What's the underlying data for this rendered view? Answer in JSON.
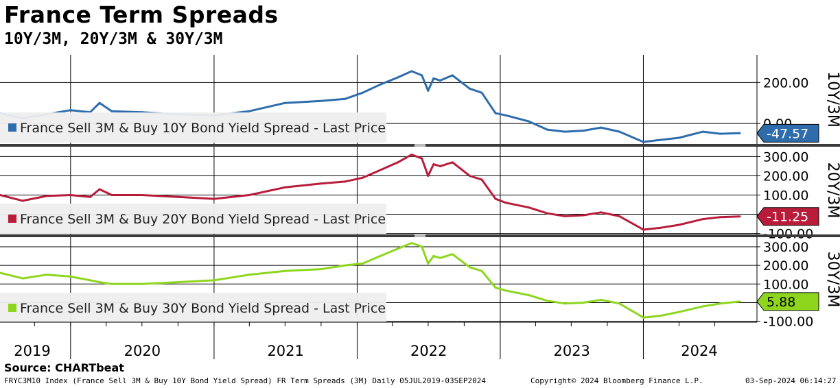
{
  "header": {
    "title": "France Term Spreads",
    "subtitle": "10Y/3M, 20Y/3M & 30Y/3M"
  },
  "footer": {
    "source": "Source: CHARTbeat",
    "description": "FRYC3M10 Index (France Sell 3M & Buy 10Y Bond Yield Spread) FR Term Spreads (3M)  Daily 05JUL2019-03SEP2024",
    "copyright": "Copyright© 2024 Bloomberg Finance L.P.",
    "timestamp": "03-Sep-2024 06:14:27"
  },
  "chart_data": {
    "type": "line",
    "x_range": [
      "2019-07-05",
      "2024-09-03"
    ],
    "x_tick_labels": [
      "2019",
      "2020",
      "2021",
      "2022",
      "2023",
      "2024"
    ],
    "panels": [
      {
        "axis_title": "10Y/3M",
        "y_tick_labels": [
          "200.00",
          "0.00"
        ],
        "y_ticks": [
          200,
          0
        ],
        "y_range": [
          -100,
          335
        ],
        "legend": "France Sell 3M & Buy 10Y Bond Yield Spread - Last Price",
        "last_value_label": "-47.57",
        "color": "#2e6cac",
        "x": [
          "2019-07-05",
          "2019-09-01",
          "2019-11-01",
          "2020-01-01",
          "2020-02-20",
          "2020-03-15",
          "2020-04-15",
          "2020-07-01",
          "2020-10-01",
          "2021-01-01",
          "2021-04-01",
          "2021-07-01",
          "2021-10-01",
          "2021-12-01",
          "2022-01-15",
          "2022-03-01",
          "2022-04-15",
          "2022-05-20",
          "2022-06-15",
          "2022-07-01",
          "2022-07-15",
          "2022-08-01",
          "2022-09-01",
          "2022-10-15",
          "2022-11-15",
          "2022-12-20",
          "2023-01-15",
          "2023-03-15",
          "2023-05-01",
          "2023-06-15",
          "2023-08-01",
          "2023-09-15",
          "2023-11-01",
          "2024-01-01",
          "2024-02-15",
          "2024-04-01",
          "2024-06-01",
          "2024-07-15",
          "2024-09-03"
        ],
        "values": [
          50,
          25,
          45,
          65,
          55,
          100,
          60,
          55,
          45,
          40,
          60,
          100,
          110,
          120,
          150,
          190,
          225,
          255,
          235,
          160,
          220,
          210,
          235,
          170,
          150,
          50,
          40,
          10,
          -30,
          -40,
          -35,
          -20,
          -40,
          -90,
          -80,
          -70,
          -40,
          -50,
          -47.57
        ]
      },
      {
        "axis_title": "20Y/3M",
        "y_tick_labels": [
          "300.00",
          "200.00",
          "100.00",
          "0.00",
          "-100.00"
        ],
        "y_ticks": [
          300,
          200,
          100,
          0,
          -100
        ],
        "y_range": [
          -105,
          355
        ],
        "legend": "France Sell 3M & Buy 20Y Bond Yield Spread - Last Price",
        "last_value_label": "-11.25",
        "color": "#b81c3a",
        "x": [
          "2019-07-05",
          "2019-09-01",
          "2019-11-01",
          "2020-01-01",
          "2020-02-20",
          "2020-03-15",
          "2020-04-15",
          "2020-07-01",
          "2020-10-01",
          "2021-01-01",
          "2021-04-01",
          "2021-07-01",
          "2021-10-01",
          "2021-12-01",
          "2022-01-15",
          "2022-03-01",
          "2022-04-15",
          "2022-05-20",
          "2022-06-15",
          "2022-07-01",
          "2022-07-15",
          "2022-08-01",
          "2022-09-01",
          "2022-10-15",
          "2022-11-15",
          "2022-12-20",
          "2023-01-15",
          "2023-03-15",
          "2023-05-01",
          "2023-06-15",
          "2023-08-01",
          "2023-09-15",
          "2023-11-01",
          "2024-01-01",
          "2024-02-15",
          "2024-04-01",
          "2024-06-01",
          "2024-07-15",
          "2024-09-03"
        ],
        "values": [
          100,
          70,
          95,
          100,
          90,
          130,
          100,
          100,
          90,
          80,
          100,
          140,
          160,
          170,
          190,
          230,
          270,
          310,
          290,
          200,
          260,
          250,
          270,
          200,
          180,
          80,
          60,
          35,
          5,
          -10,
          -5,
          10,
          -10,
          -80,
          -70,
          -55,
          -25,
          -15,
          -11.25
        ]
      },
      {
        "axis_title": "30Y/3M",
        "y_tick_labels": [
          "300.00",
          "200.00",
          "100.00",
          "0.00",
          "-100.00"
        ],
        "y_ticks": [
          300,
          200,
          100,
          0,
          -100
        ],
        "y_range": [
          -105,
          355
        ],
        "legend": "France Sell 3M & Buy 30Y Bond Yield Spread - Last Price",
        "last_value_label": "5.88",
        "color": "#8ed61e",
        "x": [
          "2019-07-05",
          "2019-09-01",
          "2019-11-01",
          "2020-01-01",
          "2020-02-20",
          "2020-03-15",
          "2020-04-15",
          "2020-07-01",
          "2020-10-01",
          "2021-01-01",
          "2021-04-01",
          "2021-07-01",
          "2021-10-01",
          "2021-12-01",
          "2022-01-15",
          "2022-03-01",
          "2022-04-15",
          "2022-05-20",
          "2022-06-15",
          "2022-07-01",
          "2022-07-15",
          "2022-08-01",
          "2022-09-01",
          "2022-10-15",
          "2022-11-15",
          "2022-12-20",
          "2023-01-15",
          "2023-03-15",
          "2023-05-01",
          "2023-06-15",
          "2023-08-01",
          "2023-09-15",
          "2023-11-01",
          "2024-01-01",
          "2024-02-15",
          "2024-04-01",
          "2024-06-01",
          "2024-07-15",
          "2024-09-03"
        ],
        "values": [
          160,
          130,
          150,
          140,
          120,
          110,
          100,
          100,
          110,
          120,
          150,
          170,
          180,
          200,
          210,
          250,
          290,
          320,
          300,
          210,
          250,
          240,
          260,
          190,
          170,
          80,
          65,
          40,
          10,
          -5,
          0,
          15,
          -5,
          -80,
          -70,
          -50,
          -20,
          -5,
          5.88
        ]
      }
    ]
  }
}
